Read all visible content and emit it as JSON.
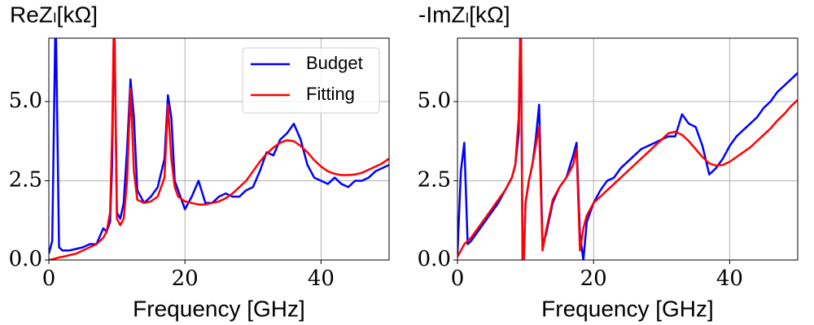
{
  "chart_data": [
    {
      "type": "line",
      "title": "ReZₗ[kΩ]",
      "xlabel": "Frequency [GHz]",
      "x": [
        0,
        0.5,
        1,
        1.5,
        2,
        3,
        4,
        5,
        6,
        7,
        8,
        8.5,
        9,
        9.3,
        9.6,
        10,
        10.5,
        11,
        11.5,
        12,
        12.5,
        13,
        14,
        15,
        16,
        17,
        17.5,
        18,
        18.5,
        19,
        20,
        21,
        22,
        23,
        24,
        25,
        26,
        27,
        28,
        29,
        30,
        31,
        32,
        33,
        34,
        35,
        36,
        37,
        38,
        39,
        40,
        41,
        42,
        43,
        44,
        45,
        46,
        47,
        48,
        49,
        50
      ],
      "xlim": [
        0,
        50
      ],
      "xticks": [
        0,
        20,
        40
      ],
      "ylim": [
        0,
        7
      ],
      "yticks": [
        {
          "value": 0,
          "label": "0.0"
        },
        {
          "value": 2.5,
          "label": "2.5"
        },
        {
          "value": 5,
          "label": "5.0"
        }
      ],
      "grid": true,
      "legend": "upper right",
      "series": [
        {
          "name": "Budget",
          "color": "#0000ff",
          "values": [
            0.2,
            0.6,
            8,
            0.4,
            0.3,
            0.3,
            0.35,
            0.4,
            0.5,
            0.5,
            1.0,
            0.9,
            1.2,
            3,
            8,
            1.5,
            1.3,
            1.8,
            3.5,
            5.7,
            4.5,
            2.2,
            1.8,
            2.0,
            2.3,
            3.2,
            5.2,
            4.5,
            2.5,
            2.2,
            1.6,
            2.0,
            2.5,
            1.8,
            1.8,
            2.0,
            2.1,
            2.0,
            2.0,
            2.2,
            2.3,
            2.8,
            3.4,
            3.3,
            3.8,
            4.0,
            4.3,
            3.8,
            3.0,
            2.6,
            2.5,
            2.4,
            2.6,
            2.4,
            2.3,
            2.5,
            2.5,
            2.6,
            2.8,
            2.9,
            3.0
          ]
        },
        {
          "name": "Fitting",
          "color": "#ff0000",
          "values": [
            0,
            0.02,
            0.05,
            0.08,
            0.1,
            0.15,
            0.2,
            0.3,
            0.4,
            0.5,
            0.7,
            0.9,
            1.5,
            4,
            8,
            1.3,
            1.1,
            1.3,
            2.5,
            5.4,
            2.8,
            1.9,
            1.8,
            1.85,
            2.0,
            2.6,
            4.9,
            3.2,
            2.3,
            2.0,
            1.85,
            1.8,
            1.75,
            1.75,
            1.8,
            1.85,
            1.95,
            2.1,
            2.3,
            2.5,
            2.8,
            3.1,
            3.35,
            3.55,
            3.7,
            3.78,
            3.75,
            3.6,
            3.4,
            3.15,
            2.95,
            2.8,
            2.72,
            2.68,
            2.68,
            2.7,
            2.75,
            2.85,
            2.95,
            3.05,
            3.2
          ]
        }
      ]
    },
    {
      "type": "line",
      "title": "-ImZₗ[kΩ]",
      "xlabel": "Frequency [GHz]",
      "x": [
        0,
        0.5,
        1,
        1.5,
        2,
        3,
        4,
        5,
        6,
        7,
        8,
        8.5,
        9,
        9.3,
        9.6,
        10,
        10.5,
        11,
        11.5,
        12,
        12.5,
        13,
        14,
        15,
        16,
        17,
        17.5,
        18,
        18.5,
        19,
        20,
        21,
        22,
        23,
        24,
        25,
        26,
        27,
        28,
        29,
        30,
        31,
        32,
        33,
        34,
        35,
        36,
        37,
        38,
        39,
        40,
        41,
        42,
        43,
        44,
        45,
        46,
        47,
        48,
        49,
        50
      ],
      "xlim": [
        0,
        50
      ],
      "xticks": [
        0,
        20,
        40
      ],
      "ylim": [
        0,
        7
      ],
      "yticks": [
        {
          "value": 0,
          "label": "0.0"
        },
        {
          "value": 2.5,
          "label": "2.5"
        },
        {
          "value": 5,
          "label": "5.0"
        }
      ],
      "grid": true,
      "series": [
        {
          "name": "Budget",
          "color": "#0000ff",
          "values": [
            0.2,
            2.8,
            3.7,
            0.5,
            0.6,
            0.9,
            1.2,
            1.5,
            1.8,
            2.2,
            2.6,
            3.0,
            4,
            8,
            -1,
            1.8,
            2.5,
            3.0,
            3.8,
            4.9,
            0.5,
            0.8,
            1.8,
            2.3,
            2.6,
            3.3,
            3.7,
            0.8,
            0,
            1.2,
            1.8,
            2.2,
            2.5,
            2.6,
            2.9,
            3.1,
            3.3,
            3.5,
            3.6,
            3.7,
            3.8,
            3.9,
            3.9,
            4.6,
            4.3,
            4.2,
            3.6,
            2.7,
            2.9,
            3.2,
            3.6,
            3.9,
            4.1,
            4.3,
            4.5,
            4.8,
            5.0,
            5.3,
            5.5,
            5.7,
            5.9
          ]
        },
        {
          "name": "Fitting",
          "color": "#ff0000",
          "values": [
            0.1,
            0.3,
            0.5,
            0.6,
            0.7,
            1.0,
            1.3,
            1.6,
            1.9,
            2.2,
            2.6,
            3,
            4.5,
            8,
            -1,
            1.8,
            2.5,
            3.0,
            3.6,
            4.2,
            0.3,
            0.9,
            1.9,
            2.3,
            2.6,
            3.0,
            3.5,
            0.3,
            1.0,
            1.4,
            1.8,
            2.0,
            2.2,
            2.4,
            2.6,
            2.8,
            3.0,
            3.2,
            3.4,
            3.6,
            3.8,
            4.0,
            4.05,
            3.95,
            3.75,
            3.5,
            3.25,
            3.05,
            2.98,
            3.0,
            3.1,
            3.25,
            3.4,
            3.55,
            3.75,
            3.95,
            4.15,
            4.4,
            4.6,
            4.85,
            5.05
          ]
        }
      ]
    }
  ]
}
